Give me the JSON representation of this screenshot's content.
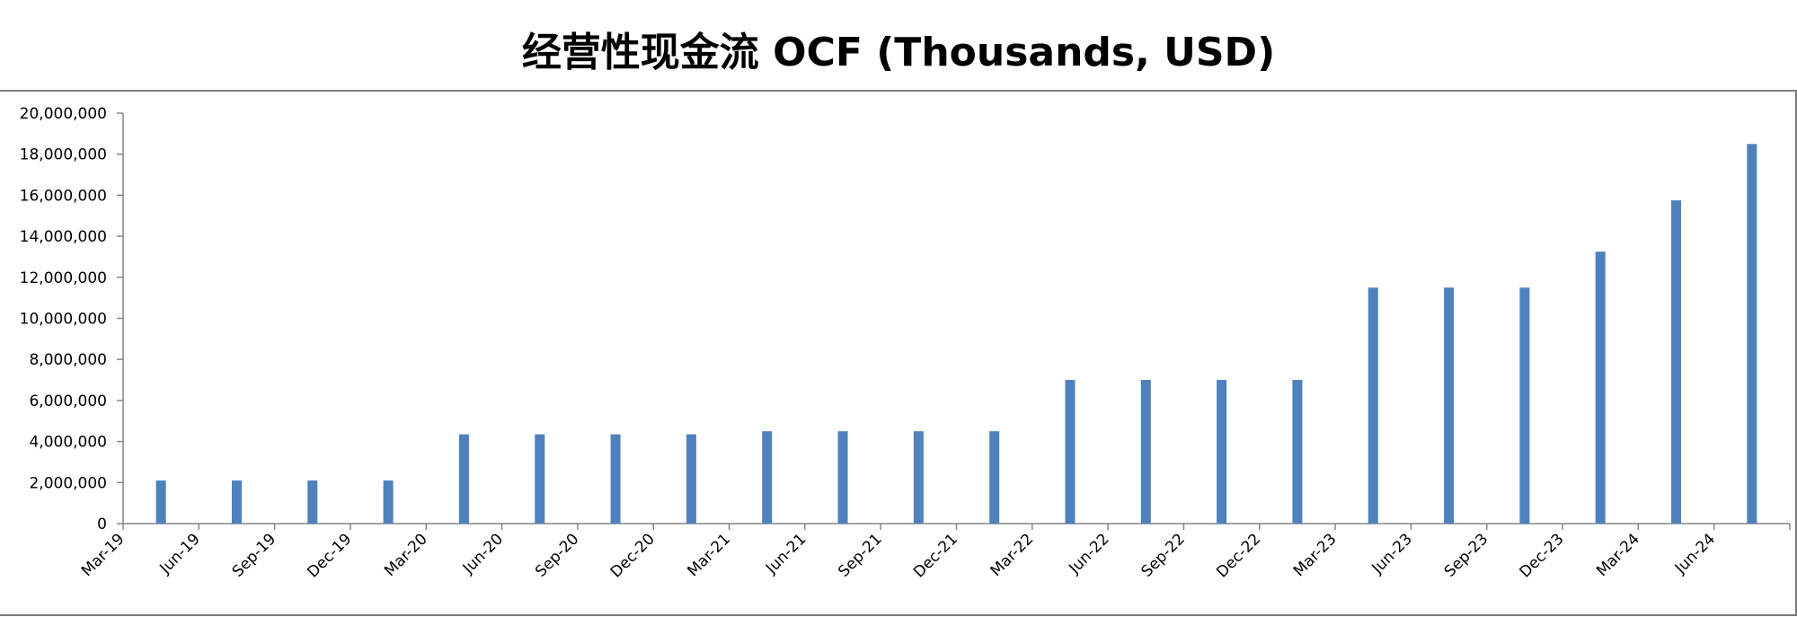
{
  "chart_data": {
    "type": "bar",
    "title": "经营性现金流 OCF (Thousands, USD)",
    "xlabel": "",
    "ylabel": "",
    "categories": [
      "Mar-19",
      "Jun-19",
      "Sep-19",
      "Dec-19",
      "Mar-20",
      "Jun-20",
      "Sep-20",
      "Dec-20",
      "Mar-21",
      "Jun-21",
      "Sep-21",
      "Dec-21",
      "Mar-22",
      "Jun-22",
      "Sep-22",
      "Dec-22",
      "Mar-23",
      "Jun-23",
      "Sep-23",
      "Dec-23",
      "Mar-24",
      "Jun-24"
    ],
    "values": [
      2100000,
      2100000,
      2100000,
      2100000,
      4350000,
      4350000,
      4350000,
      4350000,
      4500000,
      4500000,
      4500000,
      4500000,
      7000000,
      7000000,
      7000000,
      7000000,
      11500000,
      11500000,
      11500000,
      13250000,
      15750000,
      18500000
    ],
    "ylim": [
      0,
      20000000
    ],
    "yticks": [
      0,
      2000000,
      4000000,
      6000000,
      8000000,
      10000000,
      12000000,
      14000000,
      16000000,
      18000000,
      20000000
    ],
    "ytick_labels": [
      "0",
      "2,000,000",
      "4,000,000",
      "6,000,000",
      "8,000,000",
      "10,000,000",
      "12,000,000",
      "14,000,000",
      "16,000,000",
      "18,000,000",
      "20,000,000"
    ],
    "bar_color": "#4f81bd",
    "axis_color": "#868686",
    "grid": false,
    "legend": "none"
  }
}
